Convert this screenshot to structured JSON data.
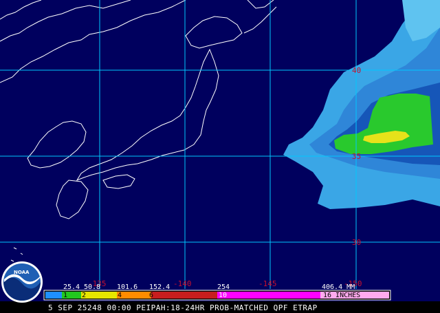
{
  "map": {
    "latitude_labels": [
      "40",
      "35",
      "30"
    ],
    "longitude_labels": [
      "-135",
      "-140",
      "-145",
      "-150"
    ]
  },
  "legend": {
    "mm_values": [
      "25.4",
      "50.8",
      "101.6",
      "152.4",
      "254",
      "406.4 MM"
    ],
    "inch_values": [
      "1",
      "2",
      "4",
      "6",
      "10",
      "16 INCHES"
    ],
    "colors": [
      "#1e90ff",
      "#22c81e",
      "#e6e600",
      "#ff8c00",
      "#c81e1e",
      "#ff00ff",
      "#ffaaee"
    ]
  },
  "title": "5 SEP 25248 00:00 PEIPAH:18-24HR PROB-MATCHED QPF ETRAP",
  "logo": {
    "text": "NOAA",
    "icon": "noaa-logo-icon"
  },
  "colors": {
    "ocean": "#00005e",
    "coastline": "#ffffff",
    "grid": "#00c8ff",
    "grid_label": "#c8102e"
  }
}
